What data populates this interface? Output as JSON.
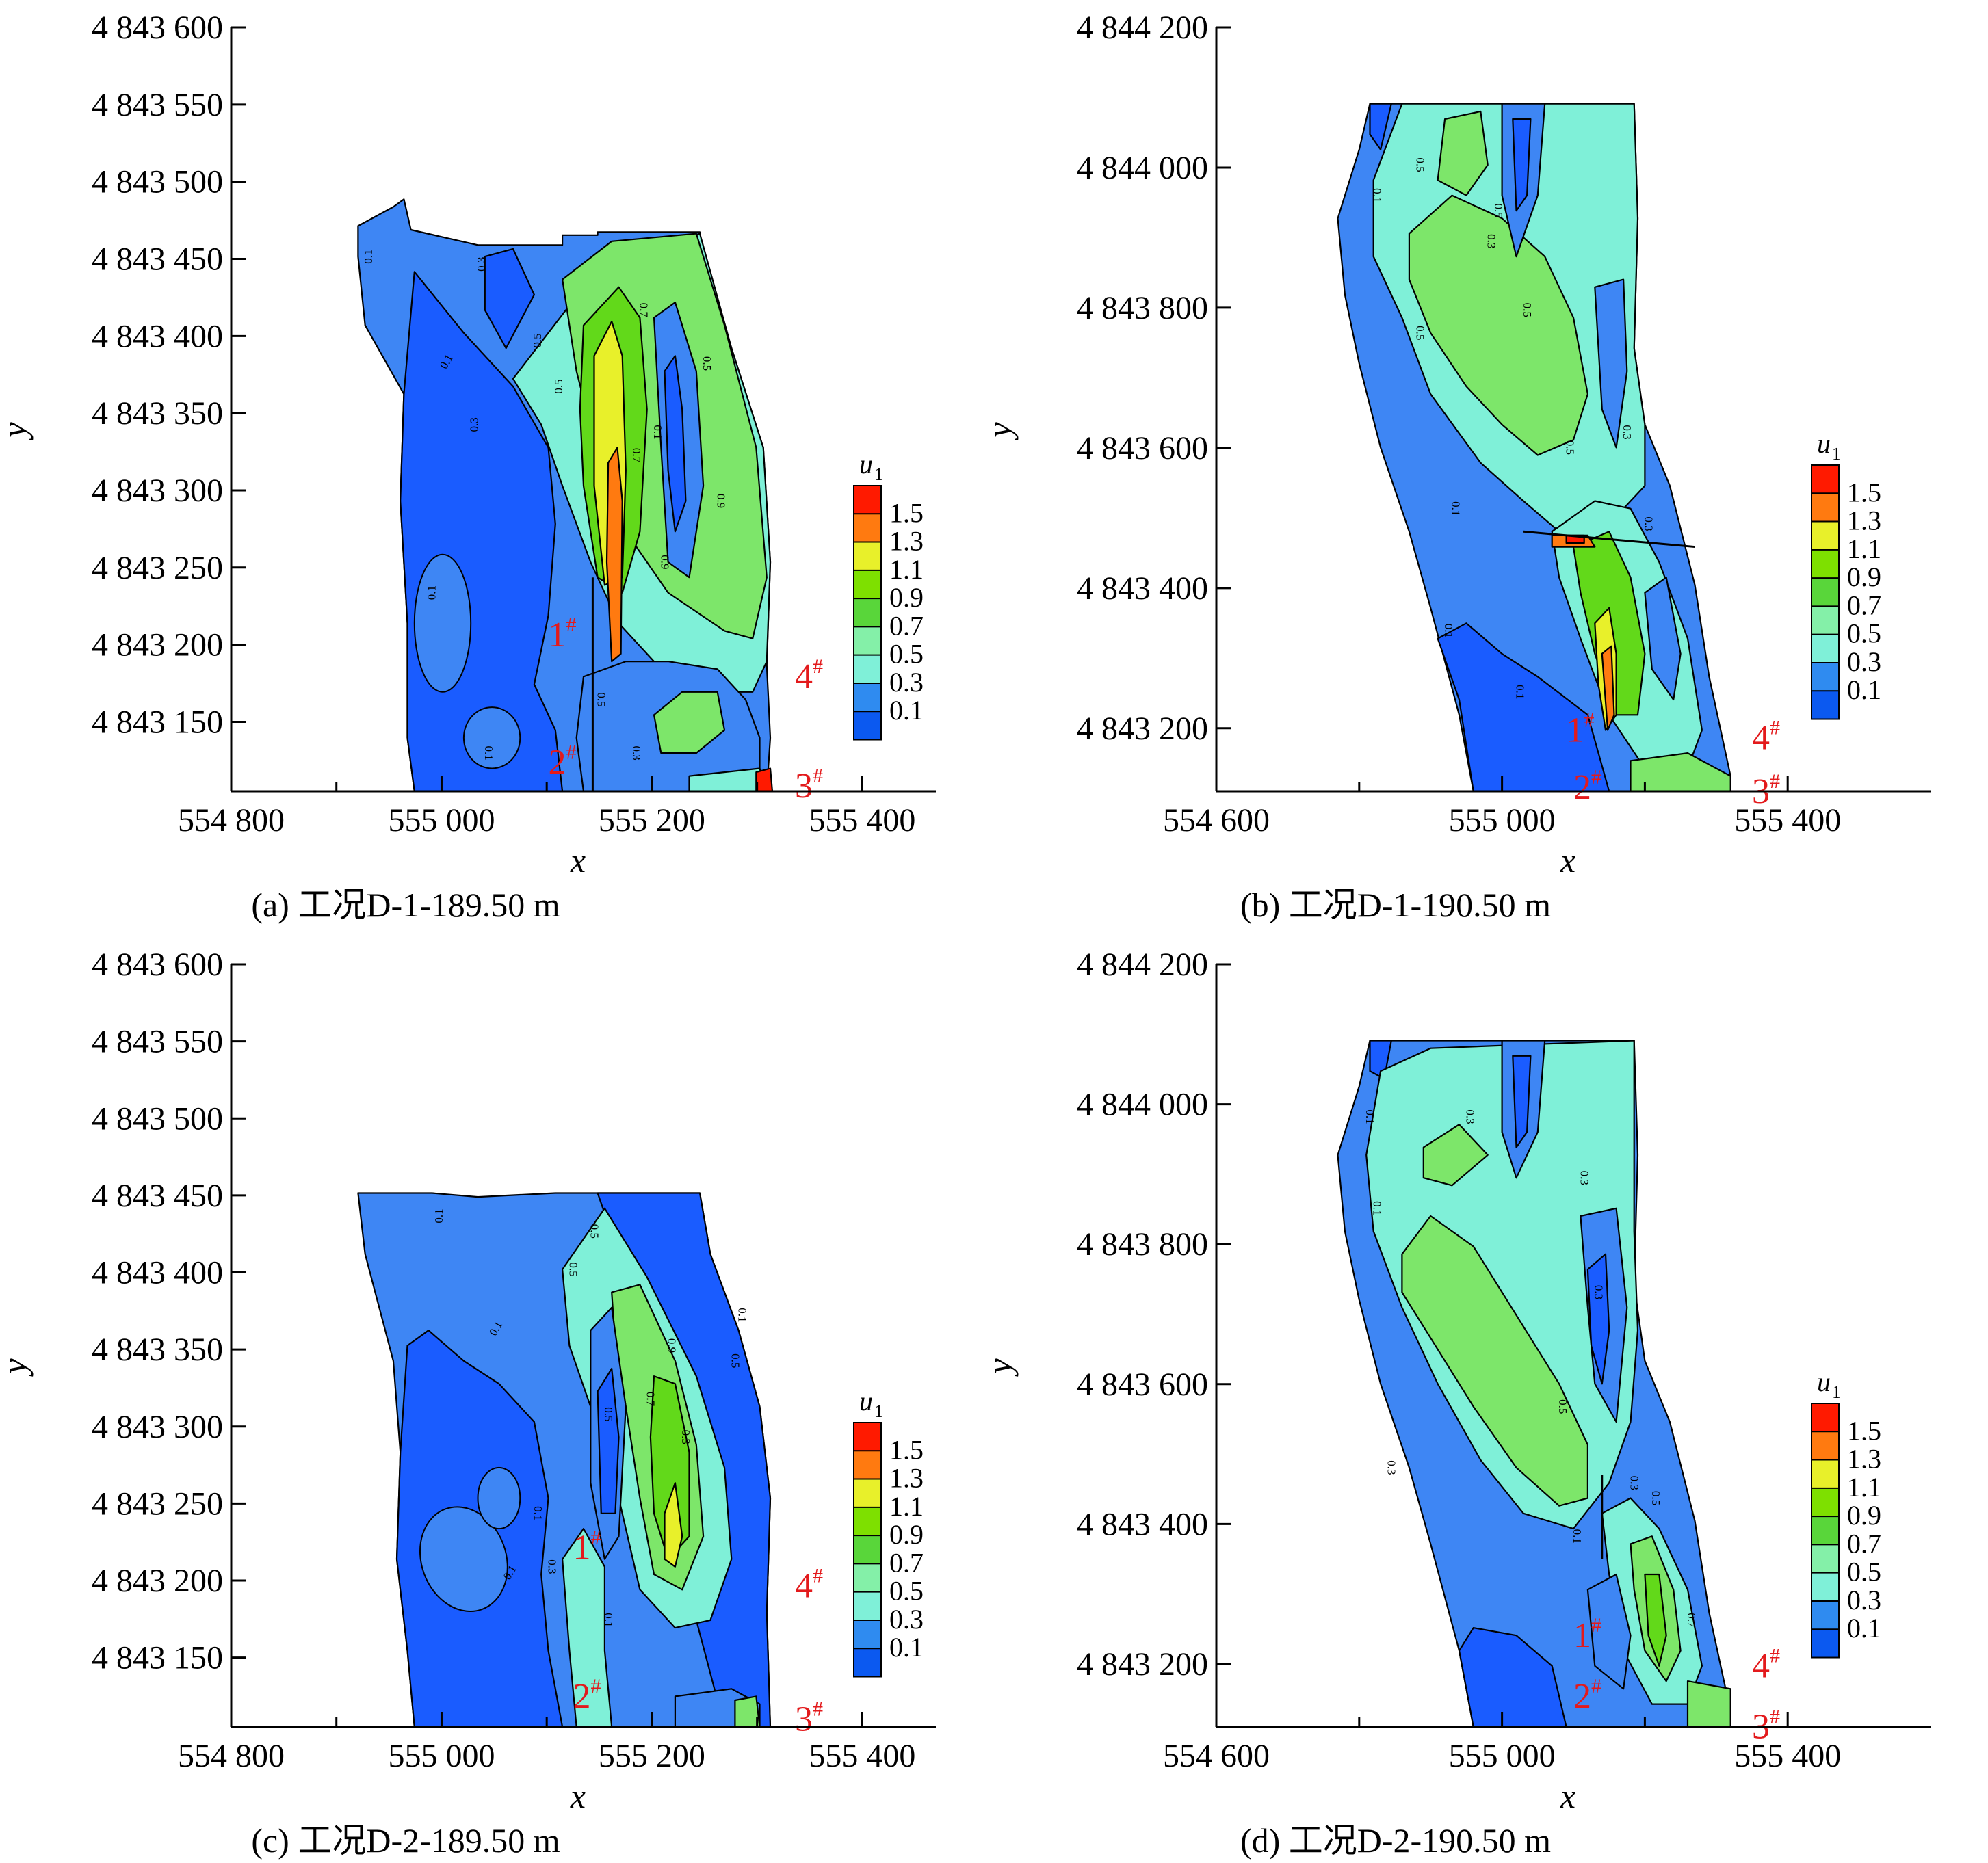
{
  "legend": {
    "title": "u",
    "title_sub": "1",
    "levels": [
      "1.5",
      "1.3",
      "1.1",
      "0.9",
      "0.7",
      "0.5",
      "0.3",
      "0.1"
    ],
    "colors": [
      "#ff1a00",
      "#ff7a10",
      "#e8f02a",
      "#7ee000",
      "#59d63a",
      "#84f0a8",
      "#7ff0d8",
      "#2f8bf0",
      "#0b59f0"
    ]
  },
  "colors": {
    "axis": "#000000",
    "outline": "#000000",
    "station_label": "#e31a1c",
    "c01": "#1a5cff",
    "c03": "#3e86f4",
    "c05": "#7ff0d8",
    "c07": "#7de66a",
    "c09": "#62d91a",
    "c11": "#e8f02a",
    "c13": "#ff7a10",
    "c15": "#ff1a00"
  },
  "stations": [
    "1#",
    "2#",
    "3#",
    "4#"
  ],
  "chart_data": [
    {
      "type": "heatmap",
      "panel": "a",
      "caption": "(a) 工况D-1-189.50 m",
      "xlabel": "x",
      "ylabel": "y",
      "xticks": [
        "554 800",
        "555 000",
        "555 200",
        "555 400"
      ],
      "yticks": [
        "4 843 600",
        "4 843 550",
        "4 843 500",
        "4 843 450",
        "4 843 400",
        "4 843 350",
        "4 843 300",
        "4 843 250",
        "4 843 200",
        "4 843 150"
      ],
      "xlim": [
        554800,
        555470
      ],
      "ylim": [
        4843105,
        4843600
      ],
      "colorbar": "u1",
      "levels": [
        0.1,
        0.3,
        0.5,
        0.7,
        0.9,
        1.1,
        1.3,
        1.5
      ],
      "contour_labels": [
        "0.1",
        "0.1",
        "0.1",
        "0.3",
        "0.3",
        "0.5",
        "0.5",
        "0.5",
        "0.7",
        "0.7",
        "0.9",
        "0.9",
        "0.1",
        "0.5",
        "0.1",
        "0.3"
      ]
    },
    {
      "type": "heatmap",
      "panel": "b",
      "caption": "(b) 工况D-1-190.50 m",
      "xlabel": "x",
      "ylabel": "y",
      "xticks": [
        "554 600",
        "555 000",
        "555 400"
      ],
      "yticks": [
        "4 844 200",
        "4 844 000",
        "4 843 800",
        "4 843 600",
        "4 843 400",
        "4 843 200"
      ],
      "xlim": [
        554600,
        555600
      ],
      "ylim": [
        4843110,
        4844200
      ],
      "colorbar": "u1",
      "levels": [
        0.1,
        0.3,
        0.5,
        0.7,
        0.9,
        1.1,
        1.3,
        1.5
      ],
      "contour_labels": [
        "0.5",
        "0.5",
        "0.5",
        "0.5",
        "0.3",
        "0.5",
        "0.1",
        "0.1",
        "0.1",
        "0.3",
        "0.3",
        "0.1"
      ]
    },
    {
      "type": "heatmap",
      "panel": "c",
      "caption": "(c) 工况D-2-189.50 m",
      "xlabel": "x",
      "ylabel": "y",
      "xticks": [
        "554 800",
        "555 000",
        "555 200",
        "555 400"
      ],
      "yticks": [
        "4 843 600",
        "4 843 550",
        "4 843 500",
        "4 843 450",
        "4 843 400",
        "4 843 350",
        "4 843 300",
        "4 843 250",
        "4 843 200",
        "4 843 150"
      ],
      "xlim": [
        554800,
        555470
      ],
      "ylim": [
        4843105,
        4843600
      ],
      "colorbar": "u1",
      "levels": [
        0.1,
        0.3,
        0.5,
        0.7,
        0.9,
        1.1,
        1.3,
        1.5
      ],
      "contour_labels": [
        "0.1",
        "0.1",
        "0.1",
        "0.1",
        "0.5",
        "0.5",
        "0.5",
        "0.7",
        "0.9",
        "0.3",
        "0.5",
        "0.1",
        "0.3",
        "0.1"
      ]
    },
    {
      "type": "heatmap",
      "panel": "d",
      "caption": "(d) 工况D-2-190.50 m",
      "xlabel": "x",
      "ylabel": "y",
      "xticks": [
        "554 600",
        "555 000",
        "555 400"
      ],
      "yticks": [
        "4 844 200",
        "4 844 000",
        "4 843 800",
        "4 843 600",
        "4 843 400",
        "4 843 200"
      ],
      "xlim": [
        554600,
        555600
      ],
      "ylim": [
        4843110,
        4844200
      ],
      "colorbar": "u1",
      "levels": [
        0.1,
        0.3,
        0.5,
        0.7,
        0.9,
        1.1,
        1.3,
        1.5
      ],
      "contour_labels": [
        "0.1",
        "0.3",
        "0.1",
        "0.3",
        "0.3",
        "0.3",
        "0.5",
        "0.1",
        "0.3",
        "0.5",
        "0.7"
      ]
    }
  ]
}
